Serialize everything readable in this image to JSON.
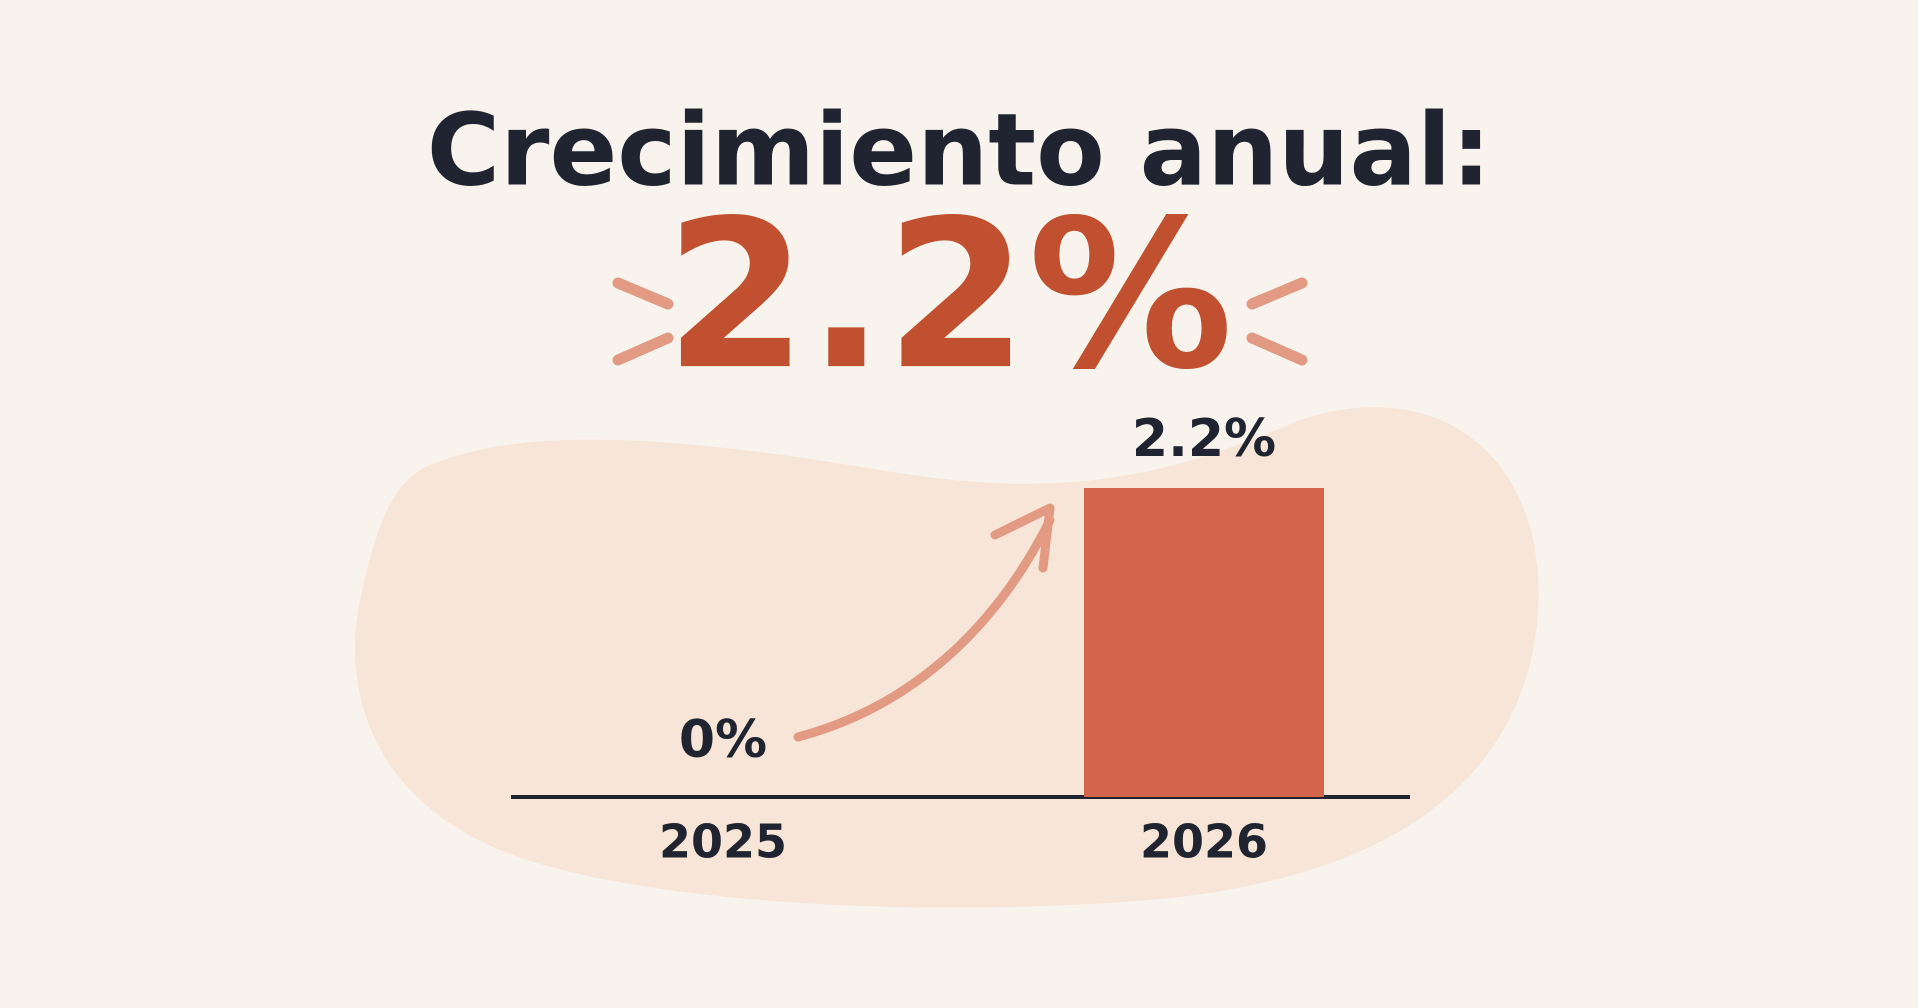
{
  "chart_data": {
    "type": "bar",
    "title": "Crecimiento anual:",
    "subtitle": "2.2%",
    "categories": [
      "2025",
      "2026"
    ],
    "values": [
      0,
      2.2
    ],
    "value_labels": [
      "0%",
      "2.2%"
    ],
    "color": "#d4654a"
  }
}
